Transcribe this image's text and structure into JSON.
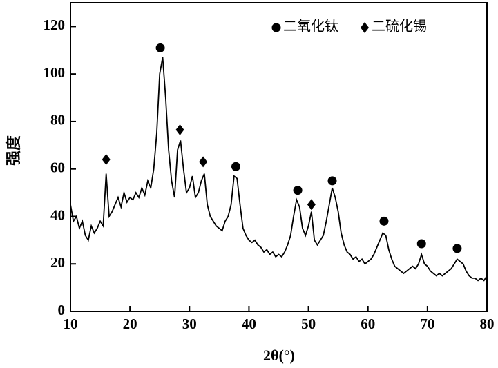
{
  "chart_data": {
    "type": "line",
    "x_label": "2θ(°)",
    "y_label": "强度",
    "xlim": [
      10,
      80
    ],
    "ylim": [
      0,
      130
    ],
    "xticks": [
      10,
      20,
      30,
      40,
      50,
      60,
      70,
      80
    ],
    "yticks": [
      0,
      20,
      40,
      60,
      80,
      100,
      120
    ],
    "legend": "upper right",
    "series": [
      {
        "type": "line",
        "color": "#000000",
        "x": [
          10,
          10.5,
          11,
          11.5,
          12,
          12.5,
          13,
          13.5,
          14,
          14.5,
          15,
          15.5,
          16,
          16.5,
          17,
          17.5,
          18,
          18.5,
          19,
          19.5,
          20,
          20.5,
          21,
          21.5,
          22,
          22.5,
          23,
          23.5,
          24,
          24.5,
          25,
          25.5,
          26,
          26.5,
          27,
          27.5,
          28,
          28.5,
          29,
          29.5,
          30,
          30.5,
          31,
          31.5,
          32,
          32.5,
          33,
          33.5,
          34,
          34.5,
          35,
          35.5,
          36,
          36.5,
          37,
          37.5,
          38,
          38.5,
          39,
          39.5,
          40,
          40.5,
          41,
          41.5,
          42,
          42.5,
          43,
          43.5,
          44,
          44.5,
          45,
          45.5,
          46,
          46.5,
          47,
          47.5,
          48,
          48.5,
          49,
          49.5,
          50,
          50.5,
          51,
          51.5,
          52,
          52.5,
          53,
          53.5,
          54,
          54.5,
          55,
          55.5,
          56,
          56.5,
          57,
          57.5,
          58,
          58.5,
          59,
          59.5,
          60,
          60.5,
          61,
          61.5,
          62,
          62.5,
          63,
          63.5,
          64,
          64.5,
          65,
          65.5,
          66,
          66.5,
          67,
          67.5,
          68,
          68.5,
          69,
          69.5,
          70,
          70.5,
          71,
          71.5,
          72,
          72.5,
          73,
          73.5,
          74,
          74.5,
          75,
          75.5,
          76,
          76.5,
          77,
          77.5,
          78,
          78.5,
          79,
          79.5,
          80
        ],
        "values": [
          45,
          38,
          40,
          35,
          38,
          32,
          30,
          36,
          33,
          35,
          38,
          36,
          58,
          40,
          42,
          45,
          48,
          44,
          50,
          46,
          48,
          47,
          50,
          48,
          52,
          49,
          55,
          52,
          60,
          75,
          100,
          107,
          90,
          68,
          55,
          48,
          68,
          72,
          60,
          50,
          52,
          57,
          48,
          50,
          55,
          58,
          45,
          40,
          38,
          36,
          35,
          34,
          38,
          40,
          45,
          57,
          56,
          45,
          35,
          32,
          30,
          29,
          30,
          28,
          27,
          25,
          26,
          24,
          25,
          23,
          24,
          23,
          25,
          28,
          32,
          40,
          47,
          44,
          35,
          32,
          36,
          42,
          30,
          28,
          30,
          32,
          38,
          45,
          52,
          48,
          42,
          33,
          28,
          25,
          24,
          22,
          23,
          21,
          22,
          20,
          21,
          22,
          24,
          27,
          30,
          33,
          32,
          26,
          22,
          19,
          18,
          17,
          16,
          17,
          18,
          19,
          18,
          20,
          24,
          20,
          19,
          17,
          16,
          15,
          16,
          15,
          16,
          17,
          18,
          20,
          22,
          21,
          20,
          17,
          15,
          14,
          14,
          13,
          14,
          13,
          15
        ]
      },
      {
        "type": "scatter",
        "name": "二氧化钛",
        "marker": "circle",
        "color": "#000000",
        "x": [
          25.1,
          37.8,
          48.2,
          54,
          62.7,
          69,
          75
        ],
        "values": [
          111,
          61,
          51,
          55,
          38,
          28.5,
          26.5
        ]
      },
      {
        "type": "scatter",
        "name": "二硫化锡",
        "marker": "diamond",
        "color": "#000000",
        "x": [
          16,
          28.4,
          32.3,
          50.5
        ],
        "values": [
          64,
          76.5,
          63,
          45
        ]
      }
    ]
  }
}
